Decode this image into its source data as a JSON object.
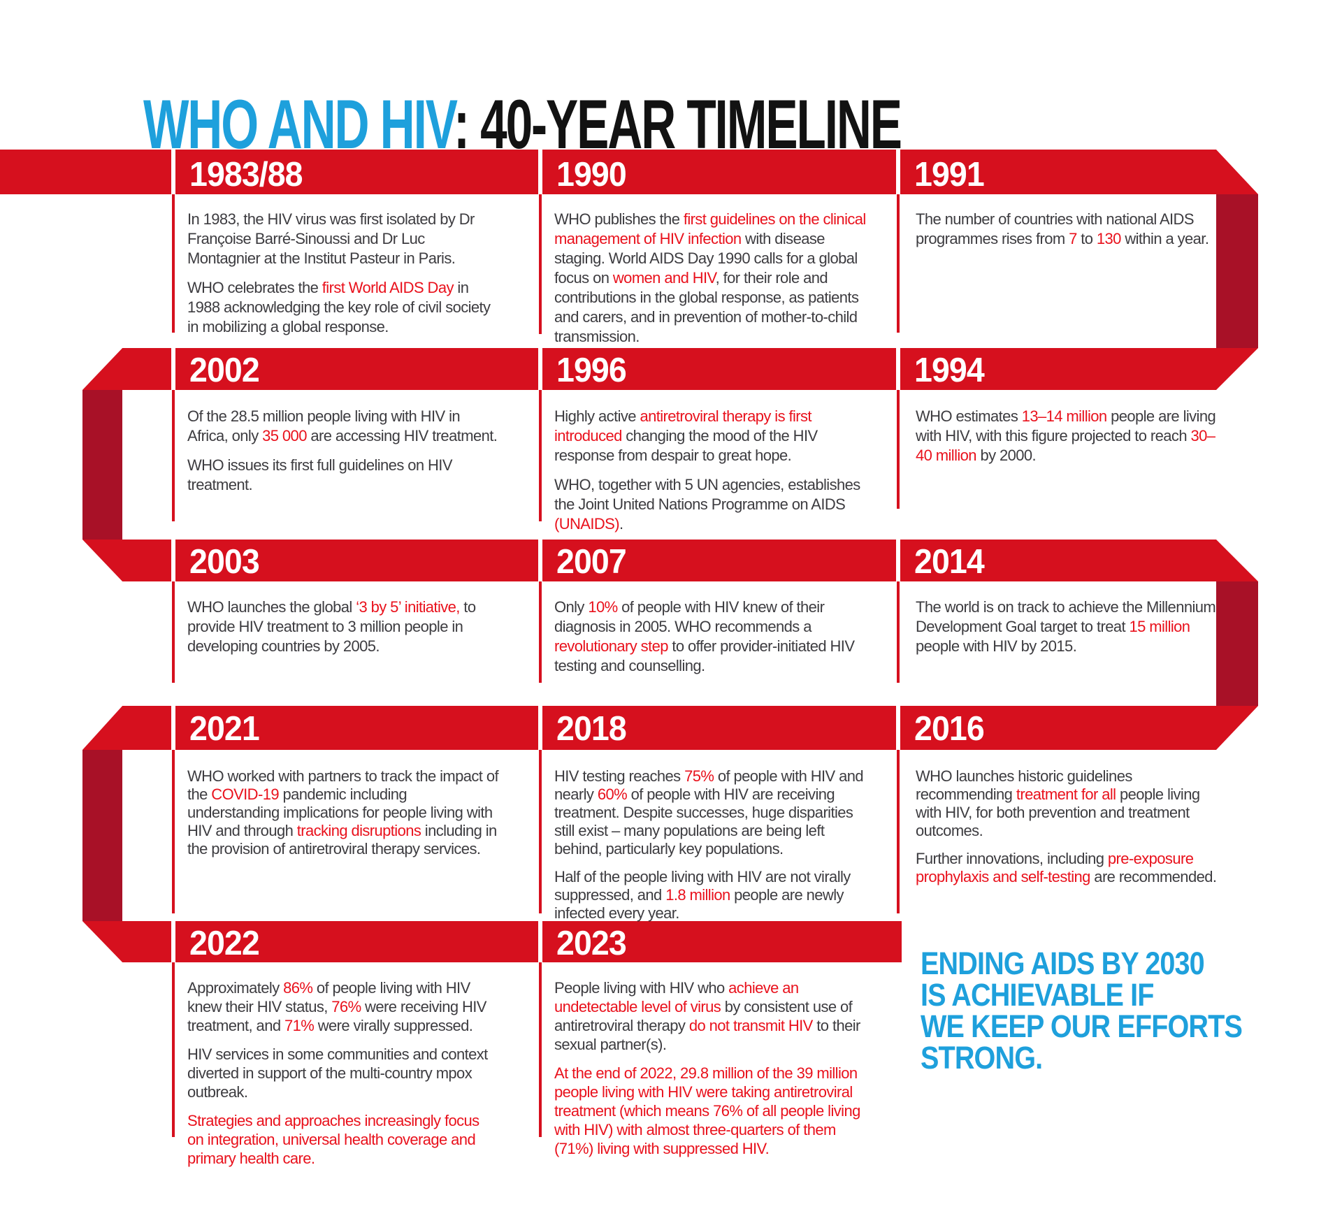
{
  "title": {
    "highlight": "WHO AND HIV",
    "rest": ": 40-YEAR TIMELINE"
  },
  "colors": {
    "band_red": "#d6101e",
    "fold_red": "#a81127",
    "text_red": "#e9111c",
    "body_gray": "#3d3c40",
    "blue": "#1ea0dc"
  },
  "closing": {
    "lines": [
      "ENDING AIDS BY 2030",
      "IS ACHIEVABLE IF",
      "WE KEEP OUR EFFORTS",
      "STRONG."
    ]
  },
  "rows": [
    {
      "cells": [
        {
          "year": "1983/88",
          "paragraphs": [
            [
              {
                "t": "In 1983, the HIV virus was first isolated by Dr Françoise Barré-Sinoussi and Dr Luc Montagnier at the Institut Pasteur in Paris."
              }
            ],
            [
              {
                "t": "WHO celebrates the "
              },
              {
                "t": "first World AIDS Day",
                "red": true
              },
              {
                "t": " in 1988 acknowledging the key role of civil society in mobilizing a global response."
              }
            ]
          ]
        },
        {
          "year": "1990",
          "paragraphs": [
            [
              {
                "t": "WHO publishes the "
              },
              {
                "t": "first guidelines on the clinical management of HIV infection",
                "red": true
              },
              {
                "t": " with disease staging. World AIDS Day 1990 calls for a global focus on "
              },
              {
                "t": "women and HIV",
                "red": true
              },
              {
                "t": ", for their role and contributions in the global response, as patients and carers, and in prevention of mother-to-child transmission."
              }
            ]
          ]
        },
        {
          "year": "1991",
          "paragraphs": [
            [
              {
                "t": "The number of countries with national AIDS programmes rises from "
              },
              {
                "t": "7",
                "red": true
              },
              {
                "t": " to "
              },
              {
                "t": "130",
                "red": true
              },
              {
                "t": " within a year."
              }
            ]
          ]
        }
      ]
    },
    {
      "cells": [
        {
          "year": "2002",
          "paragraphs": [
            [
              {
                "t": "Of the 28.5 million people living with HIV in Africa, only "
              },
              {
                "t": "35 000",
                "red": true
              },
              {
                "t": " are accessing HIV treatment."
              }
            ],
            [
              {
                "t": "WHO issues its first full guidelines on HIV treatment."
              }
            ]
          ]
        },
        {
          "year": "1996",
          "paragraphs": [
            [
              {
                "t": "Highly active "
              },
              {
                "t": "antiretroviral therapy is first introduced",
                "red": true
              },
              {
                "t": " changing the mood of the HIV response from despair to great hope."
              }
            ],
            [
              {
                "t": "WHO, together with 5 UN agencies, establishes the Joint United Nations Programme on AIDS "
              },
              {
                "t": "(UNAIDS)",
                "red": true
              },
              {
                "t": "."
              }
            ]
          ]
        },
        {
          "year": "1994",
          "paragraphs": [
            [
              {
                "t": "WHO estimates "
              },
              {
                "t": "13–14 million",
                "red": true
              },
              {
                "t": " people are living with HIV, with this figure projected to reach "
              },
              {
                "t": "30–40 million",
                "red": true
              },
              {
                "t": " by 2000."
              }
            ]
          ]
        }
      ]
    },
    {
      "cells": [
        {
          "year": "2003",
          "paragraphs": [
            [
              {
                "t": "WHO launches the global "
              },
              {
                "t": "‘3 by 5’ initiative,",
                "red": true
              },
              {
                "t": " to provide HIV treatment to 3 million people in developing countries by 2005."
              }
            ]
          ]
        },
        {
          "year": "2007",
          "paragraphs": [
            [
              {
                "t": "Only "
              },
              {
                "t": "10%",
                "red": true
              },
              {
                "t": " of people with HIV knew of their diagnosis in 2005. WHO recommends a "
              },
              {
                "t": "revolutionary step",
                "red": true
              },
              {
                "t": " to offer provider-initiated HIV testing and counselling."
              }
            ]
          ]
        },
        {
          "year": "2014",
          "paragraphs": [
            [
              {
                "t": "The world is on track to achieve the Millennium Development Goal target to treat "
              },
              {
                "t": "15 million",
                "red": true
              },
              {
                "t": " people with HIV by 2015."
              }
            ]
          ]
        }
      ]
    },
    {
      "cells": [
        {
          "year": "2021",
          "paragraphs": [
            [
              {
                "t": "WHO worked with partners to track the impact of the "
              },
              {
                "t": "COVID-19",
                "red": true
              },
              {
                "t": " pandemic including understanding implications for people living with HIV and through "
              },
              {
                "t": "tracking disruptions",
                "red": true
              },
              {
                "t": " including in the provision of antiretroviral therapy services."
              }
            ]
          ]
        },
        {
          "year": "2018",
          "paragraphs": [
            [
              {
                "t": "HIV testing reaches "
              },
              {
                "t": "75%",
                "red": true
              },
              {
                "t": " of people with HIV and nearly "
              },
              {
                "t": "60%",
                "red": true
              },
              {
                "t": " of people with HIV are receiving treatment. Despite successes, huge disparities still exist – many populations are being left behind, particularly key populations."
              }
            ],
            [
              {
                "t": "Half of the people living with HIV are not virally suppressed, and "
              },
              {
                "t": "1.8 million",
                "red": true
              },
              {
                "t": " people are newly infected every year."
              }
            ]
          ]
        },
        {
          "year": "2016",
          "paragraphs": [
            [
              {
                "t": "WHO launches historic guidelines recommending "
              },
              {
                "t": "treatment for all",
                "red": true
              },
              {
                "t": " people living with HIV, for both prevention and treatment outcomes."
              }
            ],
            [
              {
                "t": "Further innovations, including "
              },
              {
                "t": "pre-exposure prophylaxis and self-testing",
                "red": true
              },
              {
                "t": " are recommended."
              }
            ]
          ]
        }
      ]
    },
    {
      "cells": [
        {
          "year": "2022",
          "paragraphs": [
            [
              {
                "t": "Approximately "
              },
              {
                "t": "86%",
                "red": true
              },
              {
                "t": " of people living with HIV knew their HIV status, "
              },
              {
                "t": "76%",
                "red": true
              },
              {
                "t": " were receiving HIV treatment, and "
              },
              {
                "t": "71%",
                "red": true
              },
              {
                "t": " were virally suppressed."
              }
            ],
            [
              {
                "t": "HIV services in some communities and context diverted in support of the multi-country mpox outbreak."
              }
            ],
            [
              {
                "t": "Strategies and approaches increasingly focus on integration, universal health coverage and primary health care.",
                "red": true
              }
            ]
          ]
        },
        {
          "year": "2023",
          "paragraphs": [
            [
              {
                "t": "People living with HIV who "
              },
              {
                "t": "achieve an undetectable level of virus",
                "red": true
              },
              {
                "t": " by consistent use of antiretroviral therapy "
              },
              {
                "t": "do not transmit HIV",
                "red": true
              },
              {
                "t": " to their sexual partner(s)."
              }
            ],
            [
              {
                "t": "At the end of 2022, 29.8 million of the 39 million people living with HIV were taking antiretroviral treatment (which means 76% of all people living with HIV) with almost three-quarters of them (71%) living with suppressed HIV.",
                "red": true
              }
            ]
          ]
        },
        {
          "year": null,
          "paragraphs": []
        }
      ]
    }
  ]
}
